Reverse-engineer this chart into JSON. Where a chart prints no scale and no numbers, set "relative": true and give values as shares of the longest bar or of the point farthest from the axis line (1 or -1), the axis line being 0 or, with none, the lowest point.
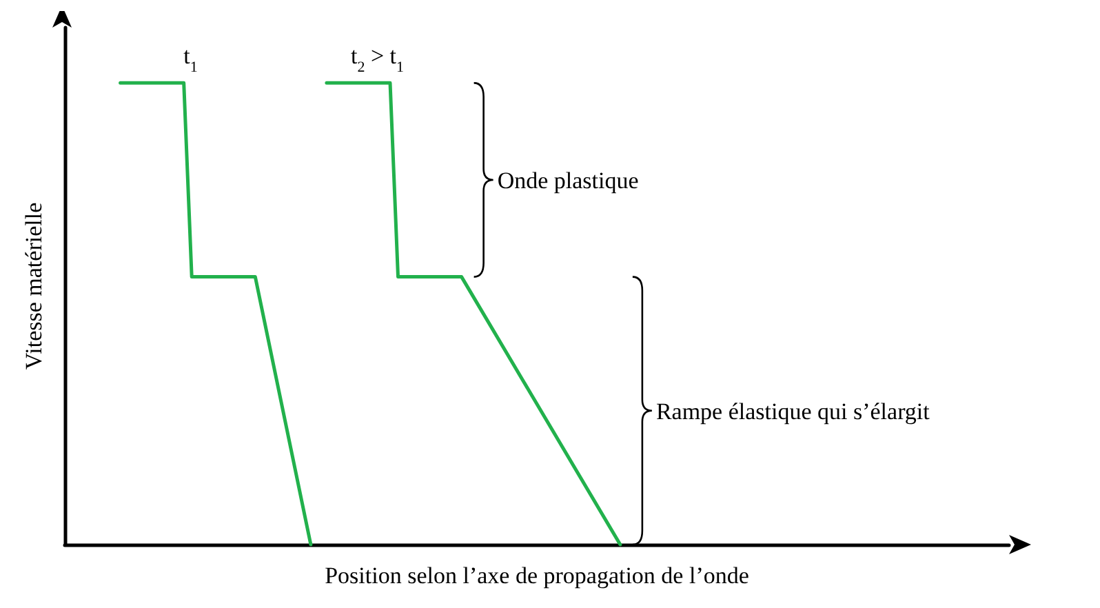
{
  "chart_data": {
    "type": "line",
    "relative": true,
    "xlabel": "Position selon l’axe de propagation de l’onde",
    "ylabel": "Vitesse matérielle",
    "grid": false,
    "line_style": "solid",
    "categories": [
      null,
      null,
      null,
      null,
      null,
      null,
      null,
      null,
      null,
      null,
      null,
      null,
      null,
      null,
      null,
      null,
      null,
      null,
      null,
      null,
      null,
      null,
      null,
      null,
      null,
      null,
      null,
      null,
      null,
      null,
      null,
      null,
      null,
      null,
      null,
      null,
      null,
      null,
      null,
      null,
      null,
      null,
      null,
      null,
      null,
      null,
      null,
      null,
      null,
      null,
      null,
      null,
      null,
      null,
      null,
      null,
      null,
      null,
      null,
      null,
      null,
      null,
      null,
      null,
      null,
      null,
      null,
      null,
      null,
      null,
      null,
      null,
      null,
      null,
      null,
      null,
      null,
      null,
      null,
      null,
      null,
      null,
      null,
      null,
      null,
      null,
      null,
      null,
      null,
      null,
      null,
      null,
      null,
      null,
      null,
      null,
      null,
      null,
      null,
      null,
      null,
      null,
      null,
      null,
      null,
      null,
      null,
      null,
      null,
      null,
      null,
      null,
      null,
      null,
      null,
      null,
      null,
      null,
      null,
      null
    ],
    "series": [
      {
        "color": "#22b14c",
        "values": [
          null,
          null,
          null,
          null,
          null,
          null,
          null,
          1,
          null,
          null,
          null,
          null,
          null,
          null,
          null,
          1,
          0.58,
          null,
          null,
          null,
          null,
          null,
          null,
          null,
          0.58,
          null,
          null,
          null,
          null,
          null,
          null,
          0,
          null,
          null,
          null,
          null,
          null,
          null,
          null,
          null,
          null,
          null,
          null,
          null,
          null,
          null,
          null,
          null,
          null,
          null,
          null,
          null,
          null,
          null,
          null,
          null,
          null,
          null,
          null,
          null,
          null,
          null,
          null,
          null,
          null,
          null,
          null,
          null,
          null,
          null,
          null,
          null,
          null,
          null,
          null,
          null,
          null,
          null,
          null,
          null,
          null,
          null,
          null,
          null,
          null,
          null,
          null,
          null,
          null,
          null,
          null,
          null,
          null,
          null,
          null,
          null,
          null,
          null,
          null,
          null,
          null,
          null,
          null,
          null,
          null,
          null,
          null,
          null,
          null,
          null,
          null,
          null,
          null,
          null,
          null,
          null,
          null,
          null,
          null,
          null
        ]
      },
      {
        "color": "#22b14c",
        "values": [
          null,
          null,
          null,
          null,
          null,
          null,
          null,
          null,
          null,
          null,
          null,
          null,
          null,
          null,
          null,
          null,
          null,
          null,
          null,
          null,
          null,
          null,
          null,
          null,
          null,
          null,
          null,
          null,
          null,
          null,
          null,
          null,
          null,
          1,
          null,
          null,
          null,
          null,
          null,
          null,
          null,
          1,
          0.58,
          null,
          null,
          null,
          null,
          null,
          null,
          null,
          0.58,
          null,
          null,
          null,
          null,
          null,
          null,
          null,
          null,
          null,
          null,
          null,
          null,
          null,
          null,
          null,
          null,
          null,
          null,
          null,
          0,
          null,
          null,
          null,
          null,
          null,
          null,
          null,
          null,
          null,
          null,
          null,
          null,
          null,
          null,
          null,
          null,
          null,
          null,
          null,
          null,
          null,
          null,
          null,
          null,
          null,
          null,
          null,
          null,
          null,
          null,
          null,
          null,
          null,
          null,
          null,
          null,
          null,
          null,
          null,
          null,
          null,
          null,
          null,
          null,
          null,
          null,
          null,
          null,
          null
        ]
      }
    ],
    "annotations": [
      "t$_{1}$",
      "t$_{2}$ > t$_{1}$",
      "Onde plastique",
      "Rampe élastique qui s’élargit"
    ]
  }
}
